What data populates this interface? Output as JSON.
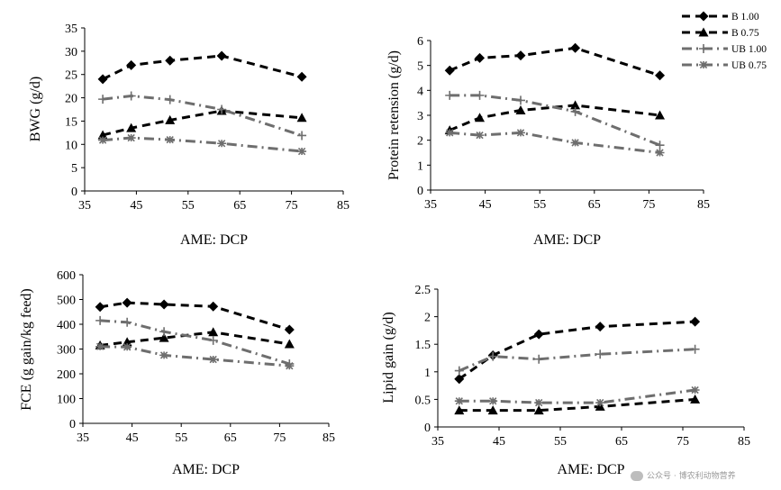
{
  "legend": {
    "items": [
      {
        "name": "B 1.00",
        "color": "#000000",
        "marker": "diamond",
        "dash": "dash"
      },
      {
        "name": "B 0.75",
        "color": "#000000",
        "marker": "triangle",
        "dash": "dash"
      },
      {
        "name": "UB 1.00",
        "color": "#6e6e6e",
        "marker": "plus",
        "dash": "dashdot"
      },
      {
        "name": "UB 0.75",
        "color": "#6e6e6e",
        "marker": "star",
        "dash": "dashdot"
      }
    ]
  },
  "watermark": {
    "text": "公众号 · 博农利动物营养"
  },
  "chart_data": [
    {
      "type": "line",
      "xlabel": "AME: DCP",
      "ylabel": "BWG (g/d)",
      "xlim": [
        35,
        85
      ],
      "xticks": [
        "35",
        "45",
        "55",
        "65",
        "75",
        "85"
      ],
      "ylim": [
        0,
        35
      ],
      "yticks": [
        "0",
        "5",
        "10",
        "15",
        "20",
        "25",
        "30",
        "35"
      ],
      "x": [
        38.5,
        44,
        51.5,
        61.5,
        77
      ],
      "series": [
        {
          "name": "B 1.00",
          "values": [
            24,
            27,
            28,
            29,
            24.5
          ]
        },
        {
          "name": "B 0.75",
          "values": [
            12,
            13.5,
            15.2,
            17.2,
            15.7
          ]
        },
        {
          "name": "UB 1.00",
          "values": [
            19.7,
            20.4,
            19.6,
            17.5,
            11.9
          ]
        },
        {
          "name": "UB 0.75",
          "values": [
            10.9,
            11.4,
            11,
            10.2,
            8.5
          ]
        }
      ]
    },
    {
      "type": "line",
      "xlabel": "AME: DCP",
      "ylabel": "Protein retension (g/d)",
      "xlim": [
        35,
        85
      ],
      "xticks": [
        "35",
        "45",
        "55",
        "65",
        "75",
        "85"
      ],
      "ylim": [
        0,
        6
      ],
      "yticks": [
        "0",
        "1",
        "2",
        "3",
        "4",
        "5",
        "6"
      ],
      "x": [
        38.5,
        44,
        51.5,
        61.5,
        77
      ],
      "series": [
        {
          "name": "B 1.00",
          "values": [
            4.8,
            5.3,
            5.4,
            5.7,
            4.6
          ]
        },
        {
          "name": "B 0.75",
          "values": [
            2.4,
            2.9,
            3.2,
            3.4,
            3.0
          ]
        },
        {
          "name": "UB 1.00",
          "values": [
            3.8,
            3.8,
            3.6,
            3.15,
            1.8
          ]
        },
        {
          "name": "UB 0.75",
          "values": [
            2.3,
            2.2,
            2.3,
            1.9,
            1.5
          ]
        }
      ]
    },
    {
      "type": "line",
      "xlabel": "AME: DCP",
      "ylabel": "FCE (g gain/kg feed)",
      "xlim": [
        35,
        85
      ],
      "xticks": [
        "35",
        "45",
        "55",
        "65",
        "75",
        "85"
      ],
      "ylim": [
        0,
        600
      ],
      "yticks": [
        "0",
        "100",
        "200",
        "300",
        "400",
        "500",
        "600"
      ],
      "x": [
        38.5,
        44,
        51.5,
        61.5,
        77
      ],
      "series": [
        {
          "name": "B 1.00",
          "values": [
            470,
            487,
            480,
            472,
            378
          ]
        },
        {
          "name": "B 0.75",
          "values": [
            315,
            328,
            345,
            368,
            320
          ]
        },
        {
          "name": "UB 1.00",
          "values": [
            415,
            408,
            370,
            335,
            240
          ]
        },
        {
          "name": "UB 0.75",
          "values": [
            310,
            308,
            275,
            258,
            232
          ]
        }
      ]
    },
    {
      "type": "line",
      "xlabel": "AME: DCP",
      "ylabel": "Lipid gain (g/d)",
      "xlim": [
        35,
        85
      ],
      "xticks": [
        "35",
        "45",
        "55",
        "65",
        "75",
        "85"
      ],
      "ylim": [
        0,
        2.5
      ],
      "yticks": [
        "0",
        "0.5",
        "1",
        "1.5",
        "2",
        "2.5"
      ],
      "x": [
        38.5,
        44,
        51.5,
        61.5,
        77
      ],
      "series": [
        {
          "name": "B 1.00",
          "values": [
            0.87,
            1.3,
            1.68,
            1.82,
            1.91
          ]
        },
        {
          "name": "B 0.75",
          "values": [
            0.3,
            0.3,
            0.3,
            0.37,
            0.5
          ]
        },
        {
          "name": "UB 1.00",
          "values": [
            1.02,
            1.28,
            1.23,
            1.32,
            1.41
          ]
        },
        {
          "name": "UB 0.75",
          "values": [
            0.47,
            0.47,
            0.44,
            0.44,
            0.67
          ]
        }
      ]
    }
  ]
}
